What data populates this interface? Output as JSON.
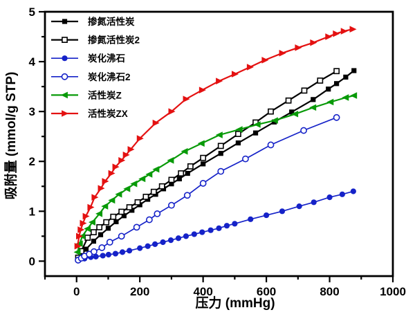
{
  "chart_data": {
    "type": "line",
    "title": "",
    "xlabel": "压力 (mmHg)",
    "ylabel": "吸附量 (mmol/g STP)",
    "xlim": [
      -100,
      1000
    ],
    "ylim": [
      -0.3,
      5
    ],
    "x_ticks": [
      0,
      200,
      400,
      600,
      800,
      1000
    ],
    "y_ticks": [
      0,
      1,
      2,
      3,
      4,
      5
    ],
    "x_minor_step": 100,
    "y_minor_step": 0.5,
    "grid": false,
    "legend_position": "top-left",
    "frame_color": "#000000",
    "tick_label_color": "#000000",
    "series": [
      {
        "name": "掺氮活性炭",
        "color": "#000000",
        "marker": "square-filled",
        "points": [
          [
            5,
            0.05
          ],
          [
            15,
            0.13
          ],
          [
            30,
            0.24
          ],
          [
            54,
            0.4
          ],
          [
            76,
            0.53
          ],
          [
            100,
            0.66
          ],
          [
            125,
            0.79
          ],
          [
            150,
            0.91
          ],
          [
            175,
            1.02
          ],
          [
            200,
            1.13
          ],
          [
            225,
            1.24
          ],
          [
            250,
            1.34
          ],
          [
            275,
            1.45
          ],
          [
            300,
            1.55
          ],
          [
            325,
            1.65
          ],
          [
            351,
            1.76
          ],
          [
            400,
            1.95
          ],
          [
            456,
            2.16
          ],
          [
            511,
            2.37
          ],
          [
            566,
            2.57
          ],
          [
            625,
            2.79
          ],
          [
            680,
            2.99
          ],
          [
            748,
            3.24
          ],
          [
            796,
            3.45
          ],
          [
            822,
            3.56
          ],
          [
            851,
            3.69
          ],
          [
            877,
            3.82
          ]
        ]
      },
      {
        "name": "掺氮活性炭2",
        "color": "#000000",
        "marker": "square-open",
        "points": [
          [
            5,
            0.07
          ],
          [
            15,
            0.2
          ],
          [
            35,
            0.47
          ],
          [
            54,
            0.58
          ],
          [
            72,
            0.68
          ],
          [
            94,
            0.78
          ],
          [
            116,
            0.89
          ],
          [
            142,
            0.99
          ],
          [
            167,
            1.08
          ],
          [
            193,
            1.18
          ],
          [
            219,
            1.29
          ],
          [
            244,
            1.39
          ],
          [
            270,
            1.5
          ],
          [
            300,
            1.63
          ],
          [
            330,
            1.76
          ],
          [
            360,
            1.9
          ],
          [
            400,
            2.07
          ],
          [
            456,
            2.31
          ],
          [
            511,
            2.55
          ],
          [
            566,
            2.78
          ],
          [
            614,
            3.0
          ],
          [
            670,
            3.22
          ],
          [
            720,
            3.42
          ],
          [
            770,
            3.62
          ],
          [
            822,
            3.81
          ]
        ]
      },
      {
        "name": "炭化沸石",
        "color": "#1522c8",
        "marker": "circle-filled",
        "points": [
          [
            7,
            0.02
          ],
          [
            25,
            0.05
          ],
          [
            45,
            0.08
          ],
          [
            61,
            0.09
          ],
          [
            83,
            0.11
          ],
          [
            101,
            0.13
          ],
          [
            123,
            0.15
          ],
          [
            145,
            0.18
          ],
          [
            167,
            0.21
          ],
          [
            200,
            0.26
          ],
          [
            225,
            0.3
          ],
          [
            248,
            0.34
          ],
          [
            273,
            0.38
          ],
          [
            298,
            0.42
          ],
          [
            322,
            0.46
          ],
          [
            346,
            0.5
          ],
          [
            372,
            0.54
          ],
          [
            397,
            0.58
          ],
          [
            424,
            0.62
          ],
          [
            450,
            0.66
          ],
          [
            475,
            0.71
          ],
          [
            500,
            0.75
          ],
          [
            550,
            0.84
          ],
          [
            600,
            0.92
          ],
          [
            650,
            1.0
          ],
          [
            704,
            1.1
          ],
          [
            750,
            1.18
          ],
          [
            800,
            1.28
          ],
          [
            840,
            1.34
          ],
          [
            875,
            1.4
          ]
        ]
      },
      {
        "name": "炭化沸石2",
        "color": "#1522c8",
        "marker": "circle-open",
        "points": [
          [
            5,
            0.02
          ],
          [
            15,
            0.06
          ],
          [
            25,
            0.1
          ],
          [
            40,
            0.14
          ],
          [
            55,
            0.19
          ],
          [
            80,
            0.27
          ],
          [
            105,
            0.38
          ],
          [
            142,
            0.5
          ],
          [
            190,
            0.68
          ],
          [
            230,
            0.83
          ],
          [
            255,
            0.95
          ],
          [
            300,
            1.12
          ],
          [
            350,
            1.32
          ],
          [
            400,
            1.56
          ],
          [
            456,
            1.8
          ],
          [
            534,
            2.05
          ],
          [
            614,
            2.33
          ],
          [
            718,
            2.62
          ],
          [
            822,
            2.88
          ]
        ]
      },
      {
        "name": "活性炭Z",
        "color": "#089a08",
        "marker": "triangle-left-filled",
        "points": [
          [
            3,
            0.18
          ],
          [
            10,
            0.35
          ],
          [
            18,
            0.5
          ],
          [
            35,
            0.65
          ],
          [
            50,
            0.78
          ],
          [
            72,
            0.95
          ],
          [
            90,
            1.1
          ],
          [
            112,
            1.22
          ],
          [
            134,
            1.34
          ],
          [
            160,
            1.45
          ],
          [
            182,
            1.55
          ],
          [
            208,
            1.65
          ],
          [
            230,
            1.74
          ],
          [
            252,
            1.84
          ],
          [
            298,
            2.02
          ],
          [
            342,
            2.2
          ],
          [
            395,
            2.36
          ],
          [
            452,
            2.53
          ],
          [
            515,
            2.64
          ],
          [
            572,
            2.74
          ],
          [
            627,
            2.82
          ],
          [
            691,
            2.95
          ],
          [
            748,
            3.08
          ],
          [
            803,
            3.19
          ],
          [
            851,
            3.28
          ],
          [
            877,
            3.32
          ]
        ]
      },
      {
        "name": "活性炭ZX",
        "color": "#e41111",
        "marker": "triangle-right-filled",
        "points": [
          [
            3,
            0.3
          ],
          [
            8,
            0.5
          ],
          [
            13,
            0.63
          ],
          [
            20,
            0.76
          ],
          [
            29,
            0.9
          ],
          [
            44,
            1.08
          ],
          [
            57,
            1.28
          ],
          [
            77,
            1.46
          ],
          [
            90,
            1.6
          ],
          [
            110,
            1.76
          ],
          [
            123,
            1.89
          ],
          [
            142,
            2.02
          ],
          [
            156,
            2.13
          ],
          [
            171,
            2.24
          ],
          [
            200,
            2.46
          ],
          [
            250,
            2.77
          ],
          [
            300,
            3.0
          ],
          [
            346,
            3.25
          ],
          [
            397,
            3.43
          ],
          [
            450,
            3.61
          ],
          [
            500,
            3.75
          ],
          [
            548,
            3.89
          ],
          [
            595,
            4.03
          ],
          [
            650,
            4.17
          ],
          [
            700,
            4.28
          ],
          [
            748,
            4.38
          ],
          [
            796,
            4.5
          ],
          [
            820,
            4.56
          ],
          [
            845,
            4.61
          ],
          [
            873,
            4.65
          ]
        ]
      }
    ]
  }
}
